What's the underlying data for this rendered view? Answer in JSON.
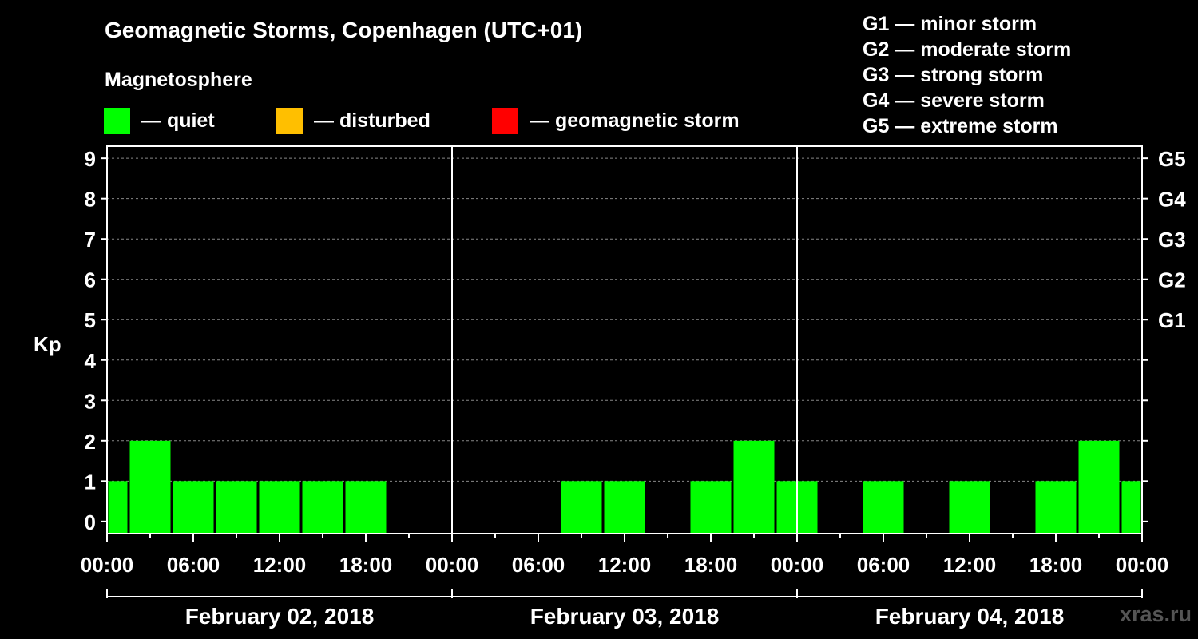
{
  "header": {
    "title": "Geomagnetic Storms, Copenhagen (UTC+01)",
    "subtitle": "Magnetosphere",
    "legend": [
      {
        "label": "— quiet",
        "color": "#00ff00"
      },
      {
        "label": "— disturbed",
        "color": "#ffbf00"
      },
      {
        "label": "— geomagnetic storm",
        "color": "#ff0000"
      }
    ],
    "scale": [
      "G1 — minor storm",
      "G2 — moderate storm",
      "G3 — strong storm",
      "G4 — severe storm",
      "G5 — extreme storm"
    ]
  },
  "watermark": "xras.ru",
  "chart_data": {
    "type": "bar",
    "ylabel": "Kp",
    "ylim": [
      -0.3,
      9.3
    ],
    "y_ticks": [
      0,
      1,
      2,
      3,
      4,
      5,
      6,
      7,
      8,
      9
    ],
    "right_axis_labels": [
      {
        "y": 5,
        "label": "G1"
      },
      {
        "y": 6,
        "label": "G2"
      },
      {
        "y": 7,
        "label": "G3"
      },
      {
        "y": 8,
        "label": "G4"
      },
      {
        "y": 9,
        "label": "G5"
      }
    ],
    "x_tick_labels": [
      "00:00",
      "06:00",
      "12:00",
      "18:00",
      "00:00",
      "06:00",
      "12:00",
      "18:00",
      "00:00",
      "06:00",
      "12:00",
      "18:00",
      "00:00"
    ],
    "days": [
      "February 02, 2018",
      "February 03, 2018",
      "February 04, 2018"
    ],
    "bar_color": "#00ff00",
    "bars": [
      {
        "hour": 0,
        "kp": 1
      },
      {
        "hour": 3,
        "kp": 2
      },
      {
        "hour": 6,
        "kp": 1
      },
      {
        "hour": 9,
        "kp": 1
      },
      {
        "hour": 12,
        "kp": 1
      },
      {
        "hour": 15,
        "kp": 1
      },
      {
        "hour": 18,
        "kp": 1
      },
      {
        "hour": 33,
        "kp": 1
      },
      {
        "hour": 36,
        "kp": 1
      },
      {
        "hour": 42,
        "kp": 1
      },
      {
        "hour": 45,
        "kp": 2
      },
      {
        "hour": 48,
        "kp": 1
      },
      {
        "hour": 54,
        "kp": 1
      },
      {
        "hour": 60,
        "kp": 1
      },
      {
        "hour": 66,
        "kp": 1
      },
      {
        "hour": 69,
        "kp": 2
      },
      {
        "hour": 72,
        "kp": 1
      }
    ],
    "grid": "dashed horizontal",
    "legend_placement": "top"
  }
}
